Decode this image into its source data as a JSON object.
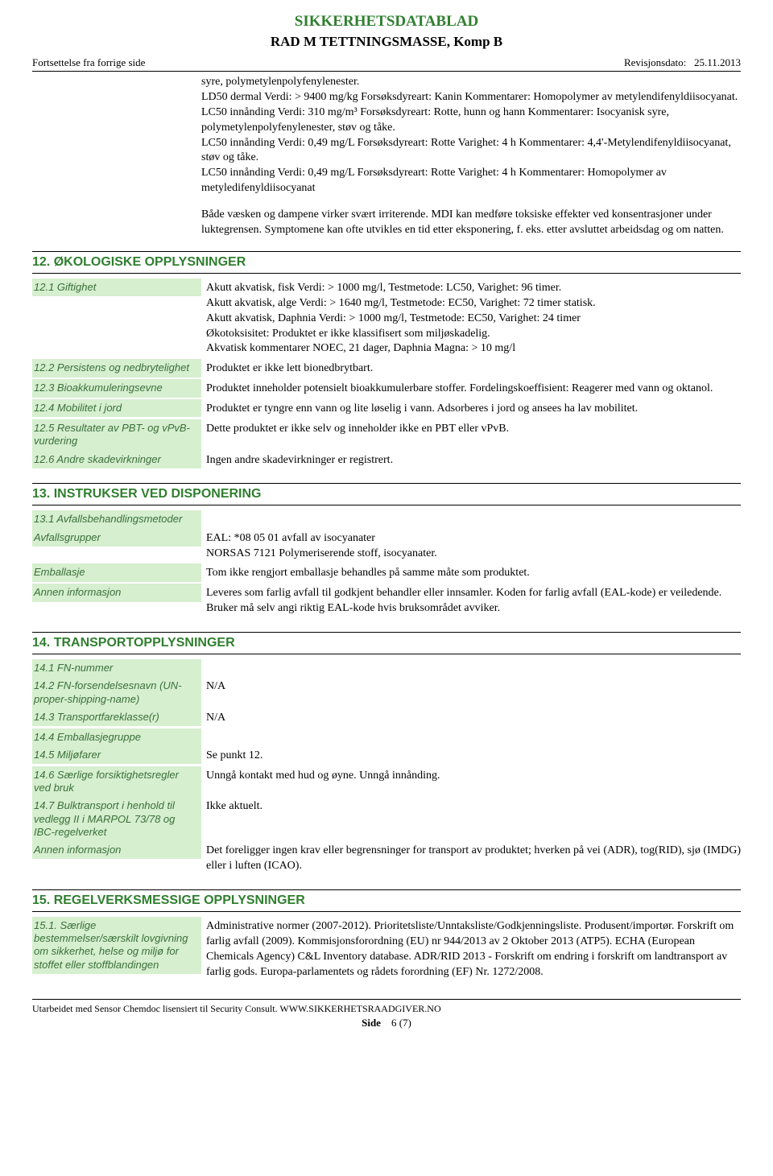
{
  "header": {
    "title": "SIKKERHETSDATABLAD",
    "subtitle": "RAD M TETTNINGSMASSE, Komp B",
    "continuation": "Fortsettelse fra forrige side",
    "revision_label": "Revisjonsdato:",
    "revision_date": "25.11.2013"
  },
  "continuation_text": {
    "p1": "syre, polymetylenpolyfenylenester.",
    "p2": "LD50 dermal Verdi: > 9400 mg/kg Forsøksdyreart: Kanin Kommentarer: Homopolymer av metylendifenyldiisocyanat.",
    "p3": "LC50 innånding Verdi: 310 mg/m³ Forsøksdyreart: Rotte, hunn og hann Kommentarer: Isocyanisk syre, polymetylenpolyfenylenester, støv og tåke.",
    "p4": "LC50 innånding Verdi: 0,49 mg/L Forsøksdyreart: Rotte Varighet: 4 h Kommentarer: 4,4'-Metylendifenyldiisocyanat, støv og tåke.",
    "p5": "LC50 innånding Verdi: 0,49 mg/L Forsøksdyreart: Rotte Varighet: 4 h Kommentarer: Homopolymer av metyledifenyldiisocyanat",
    "p6": "Både væsken og dampene virker svært irriterende. MDI kan medføre toksiske effekter ved konsentrasjoner under luktegrensen. Symptomene kan ofte utvikles en tid etter eksponering, f. eks. etter avsluttet arbeidsdag og om natten."
  },
  "section12": {
    "heading": "12. ØKOLOGISKE OPPLYSNINGER",
    "s1": {
      "label": "12.1 Giftighet",
      "l1": "Akutt akvatisk, fisk Verdi: > 1000 mg/l, Testmetode: LC50,  Varighet: 96 timer.",
      "l2": "Akutt akvatisk, alge Verdi: > 1640 mg/l, Testmetode: EC50, Varighet: 72 timer statisk.",
      "l3": "Akutt akvatisk, Daphnia Verdi: > 1000 mg/l, Testmetode: EC50, Varighet: 24 timer",
      "l4": "Økotoksisitet: Produktet er ikke klassifisert som miljøskadelig.",
      "l5": "Akvatisk kommentarer NOEC, 21 dager, Daphnia Magna: > 10 mg/l"
    },
    "s2": {
      "label": "12.2 Persistens og nedbrytelighet",
      "value": "Produktet er ikke lett bionedbrytbart."
    },
    "s3": {
      "label": "12.3 Bioakkumuleringsevne",
      "value": "Produktet inneholder potensielt bioakkumulerbare stoffer. Fordelingskoeffisient: Reagerer med vann og oktanol."
    },
    "s4": {
      "label": "12.4 Mobilitet i jord",
      "value": "Produktet er tyngre enn vann og lite løselig i vann. Adsorberes i jord og ansees ha lav mobilitet."
    },
    "s5": {
      "label": "12.5 Resultater av PBT- og vPvB-vurdering",
      "value": "Dette produktet er ikke selv og inneholder ikke en PBT eller vPvB."
    },
    "s6": {
      "label": "12.6 Andre skadevirkninger",
      "value": "Ingen andre skadevirkninger er registrert."
    }
  },
  "section13": {
    "heading": "13. INSTRUKSER VED DISPONERING",
    "s1": {
      "label": "13.1 Avfallsbehandlingsmetoder"
    },
    "s2": {
      "label": "Avfallsgrupper",
      "l1": "EAL: *08 05 01 avfall av isocyanater",
      "l2": "NORSAS 7121 Polymeriserende stoff, isocyanater."
    },
    "s3": {
      "label": "Emballasje",
      "value": "Tom ikke rengjort emballasje behandles på samme måte som produktet."
    },
    "s4": {
      "label": "Annen informasjon",
      "value": "Leveres som farlig avfall til godkjent behandler eller innsamler. Koden for farlig avfall (EAL-kode) er veiledende. Bruker må selv angi riktig EAL-kode hvis bruksområdet avviker."
    }
  },
  "section14": {
    "heading": "14. TRANSPORTOPPLYSNINGER",
    "s1": {
      "label": "14.1 FN-nummer"
    },
    "s2": {
      "label": "14.2 FN-forsendelsesnavn (UN-proper-shipping-name)",
      "value": "N/A"
    },
    "s3": {
      "label": "14.3 Transportfareklasse(r)",
      "value": "N/A"
    },
    "s4": {
      "label": "14.4 Emballasjegruppe"
    },
    "s5": {
      "label": "14.5 Miljøfarer",
      "value": "Se punkt 12."
    },
    "s6": {
      "label": "14.6 Særlige forsiktighetsregler ved bruk",
      "value": "Unngå kontakt med hud og øyne. Unngå innånding."
    },
    "s7": {
      "label": "14.7 Bulktransport i henhold til vedlegg II i MARPOL 73/78 og IBC-regelverket",
      "value": "Ikke aktuelt."
    },
    "s8": {
      "label": "Annen informasjon",
      "value": "Det foreligger ingen krav eller begrensninger for transport av produktet; hverken på vei (ADR), tog(RID), sjø (IMDG) eller i luften (ICAO)."
    }
  },
  "section15": {
    "heading": "15. REGELVERKSMESSIGE OPPLYSNINGER",
    "s1": {
      "label": "15.1. Særlige bestemmelser/særskilt lovgivning om sikkerhet, helse og miljø for stoffet eller stoffblandingen",
      "value": "Administrative normer (2007-2012). Prioritetsliste/Unntaksliste/Godkjenningsliste. Produsent/importør. Forskrift om farlig avfall (2009). Kommisjonsforordning (EU) nr 944/2013 av 2 Oktober 2013 (ATP5). ECHA (European Chemicals Agency) C&L Inventory database. ADR/RID 2013 - Forskrift om endring i forskrift om landtransport av farlig gods. Europa-parlamentets og rådets forordning (EF) Nr. 1272/2008."
    }
  },
  "footer": {
    "line": "Utarbeidet med Sensor Chemdoc lisensiert til Security Consult. WWW.SIKKERHETSRAADGIVER.NO",
    "page_label": "Side",
    "page_num": "6 (7)"
  }
}
